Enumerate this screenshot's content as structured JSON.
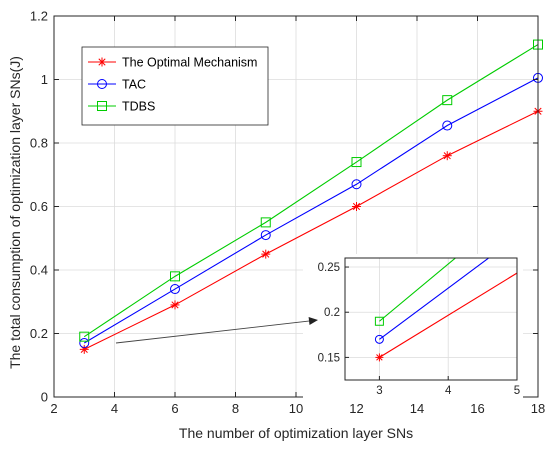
{
  "chart_data": {
    "type": "line",
    "xlabel": "The number of optimization layer SNs",
    "ylabel": "The total consumption of optimization layer SNs(J)",
    "xlim": [
      2,
      18
    ],
    "ylim": [
      0,
      1.2
    ],
    "xticks": [
      "2",
      "4",
      "6",
      "8",
      "10",
      "12",
      "14",
      "16",
      "18"
    ],
    "yticks": [
      "0",
      "0.2",
      "0.4",
      "0.6",
      "0.8",
      "1",
      "1.2"
    ],
    "grid": true,
    "legend_position": "top-left",
    "x": [
      3,
      6,
      9,
      12,
      15,
      18
    ],
    "series": [
      {
        "name": "The Optimal Mechanism",
        "color": "#ff0000",
        "marker": "asterisk",
        "values": [
          0.15,
          0.29,
          0.45,
          0.6,
          0.76,
          0.9
        ]
      },
      {
        "name": "TAC",
        "color": "#0000ff",
        "marker": "circle",
        "values": [
          0.17,
          0.34,
          0.51,
          0.67,
          0.855,
          1.005
        ]
      },
      {
        "name": "TDBS",
        "color": "#00cc00",
        "marker": "square",
        "values": [
          0.19,
          0.38,
          0.55,
          0.74,
          0.935,
          1.11
        ]
      }
    ],
    "inset": {
      "xlim": [
        2.5,
        5
      ],
      "ylim": [
        0.125,
        0.26
      ],
      "xticks": [
        "3",
        "4",
        "5"
      ],
      "yticks": [
        "0.15",
        "0.2",
        "0.25"
      ],
      "marked_x": 3
    }
  }
}
